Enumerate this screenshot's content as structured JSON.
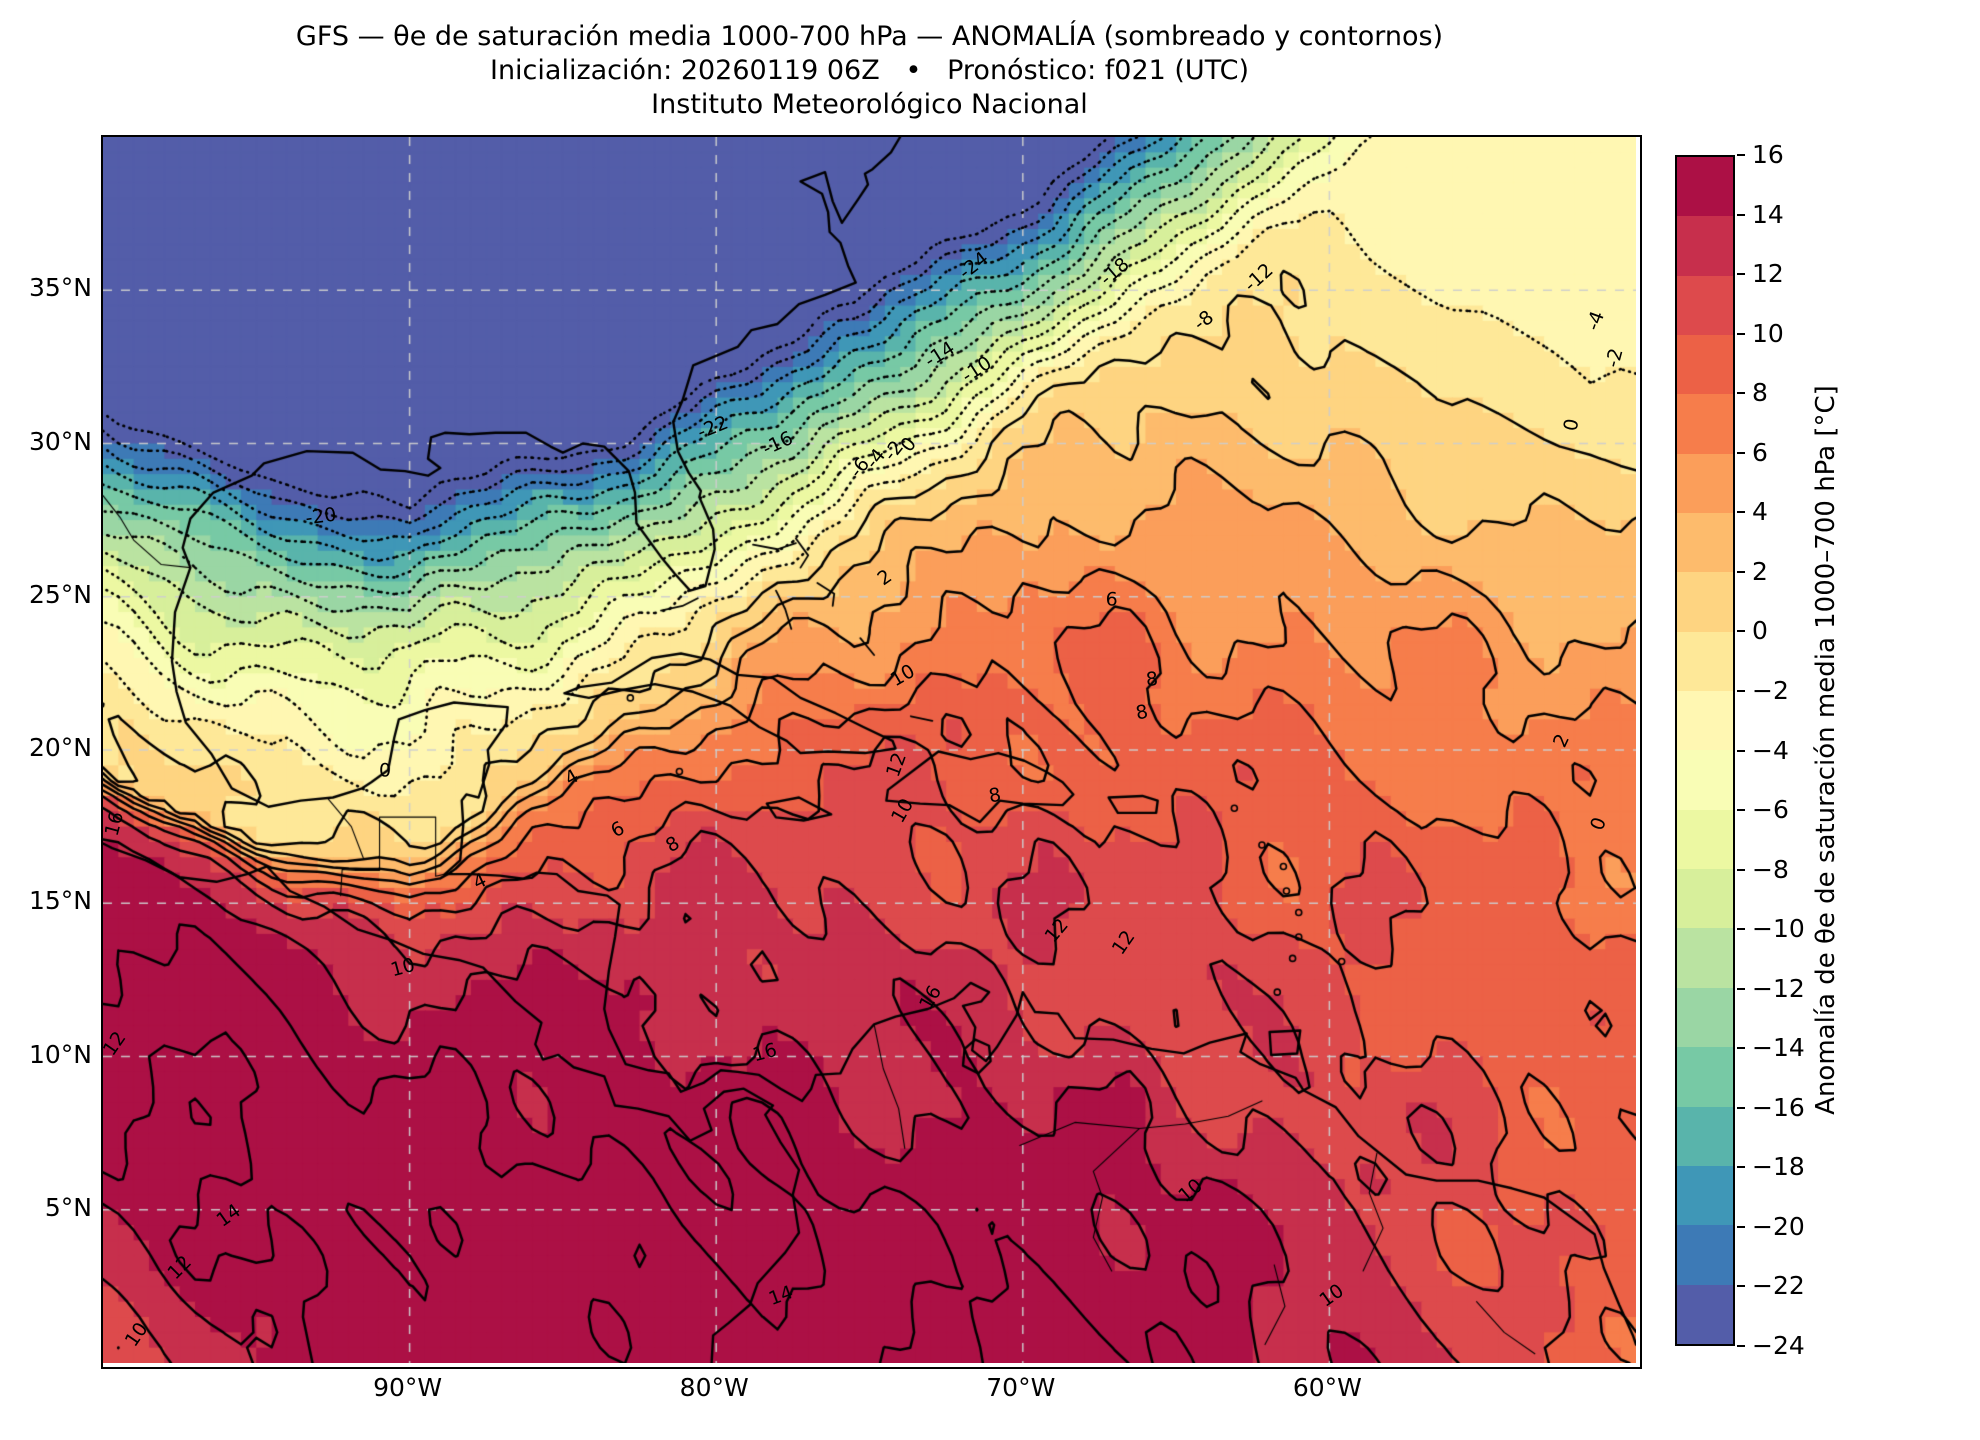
{
  "header": {
    "line1": "GFS — θe de saturación media 1000-700 hPa — ANOMALÍA (sombreado y contornos)",
    "line2": "Inicialización: 20260119 06Z   •   Pronóstico: f021 (UTC)",
    "line3": "Instituto Meteorológico Nacional"
  },
  "axes": {
    "lat_ticks": [
      {
        "label": "35°N",
        "lat": 35
      },
      {
        "label": "30°N",
        "lat": 30
      },
      {
        "label": "25°N",
        "lat": 25
      },
      {
        "label": "20°N",
        "lat": 20
      },
      {
        "label": "15°N",
        "lat": 15
      },
      {
        "label": "10°N",
        "lat": 10
      },
      {
        "label": "5°N",
        "lat": 5
      }
    ],
    "lon_ticks": [
      {
        "label": "90°W",
        "lon": -90
      },
      {
        "label": "80°W",
        "lon": -80
      },
      {
        "label": "70°W",
        "lon": -70
      },
      {
        "label": "60°W",
        "lon": -60
      }
    ]
  },
  "colorbar": {
    "label": "Anomalía de θe de saturación media 1000–700 hPa [°C]",
    "tick_labels": [
      "16",
      "14",
      "12",
      "10",
      "8",
      "6",
      "4",
      "2",
      "0",
      "−2",
      "−4",
      "−6",
      "−8",
      "−10",
      "−12",
      "−14",
      "−16",
      "−18",
      "−20",
      "−22",
      "−24"
    ],
    "bin_colors_low_to_high": [
      "#535DA9",
      "#3D7AB6",
      "#3F97B7",
      "#59B4AB",
      "#77C9A5",
      "#9AD6A4",
      "#BAE3A1",
      "#D7EF9B",
      "#ECF8A2",
      "#F9FDB5",
      "#FFF7B2",
      "#FEE898",
      "#FED481",
      "#FDBB6C",
      "#FB9E5A",
      "#F67D4B",
      "#EC6146",
      "#DD4A4C",
      "#C72F4C",
      "#AC1045"
    ]
  },
  "chart_data": {
    "type": "filled_contour_map",
    "title": "GFS — θe de saturación media 1000-700 hPa — ANOMALÍA (sombreado y contornos)",
    "subtitle": "Inicialización: 20260119 06Z • Pronóstico: f021 (UTC)",
    "source": "Instituto Meteorológico Nacional",
    "variable": "Anomalía de θe de saturación media 1000–700 hPa",
    "units": "°C",
    "extent": {
      "lon_min": -100,
      "lon_max": -50,
      "lat_min": 0,
      "lat_max": 40
    },
    "levels_c": [
      -24,
      -22,
      -20,
      -18,
      -16,
      -14,
      -12,
      -10,
      -8,
      -6,
      -4,
      -2,
      0,
      2,
      4,
      6,
      8,
      10,
      12,
      14,
      16
    ],
    "value_range_shaded": [
      -24,
      16
    ],
    "contour_interval": 2,
    "line_style": {
      "negative": "dotted",
      "zero_and_positive": "solid"
    },
    "gridline_lats": [
      5,
      10,
      15,
      20,
      25,
      30,
      35
    ],
    "gridline_lons": [
      -90,
      -80,
      -70,
      -60
    ],
    "pattern": "Very negative anomaly (≤ −24 °C, purple) over NW Gulf of Mexico and US East Coast; tight SW–NE gradient band toward mild negatives (−2 to −8) in NE corner; near-zero wedge over Mexico/Yucatán; strong positive anomaly (+8 to > +16 °C, crimson) over Central America, southern Caribbean and northern South America; orange (+2 to +8) over central Atlantic/Caribbean.",
    "contour_labels": [
      {
        "text": "-24",
        "lon": -71.6,
        "lat": 35.8,
        "rot": -38
      },
      {
        "text": "-18",
        "lon": -67.0,
        "lat": 35.6,
        "rot": -40
      },
      {
        "text": "-12",
        "lon": -62.3,
        "lat": 35.4,
        "rot": -42
      },
      {
        "text": "-8",
        "lon": -64.1,
        "lat": 34.0,
        "rot": -38
      },
      {
        "text": "-14",
        "lon": -72.7,
        "lat": 32.9,
        "rot": -32
      },
      {
        "text": "-10",
        "lon": -71.5,
        "lat": 32.4,
        "rot": -33
      },
      {
        "text": "-22",
        "lon": -80.1,
        "lat": 30.5,
        "rot": -22
      },
      {
        "text": "-16",
        "lon": -78.0,
        "lat": 30.0,
        "rot": -25
      },
      {
        "text": "-20",
        "lon": -92.9,
        "lat": 27.6,
        "rot": -8
      },
      {
        "text": "-6",
        "lon": -75.3,
        "lat": 29.2,
        "rot": -52
      },
      {
        "text": "-4",
        "lon": -74.8,
        "lat": 29.5,
        "rot": -52
      },
      {
        "text": "-2",
        "lon": -74.2,
        "lat": 29.75,
        "rot": -52
      },
      {
        "text": "0",
        "lon": -73.7,
        "lat": 29.95,
        "rot": -52
      },
      {
        "text": "-4",
        "lon": -51.3,
        "lat": 34.0,
        "rot": -70
      },
      {
        "text": "0",
        "lon": -52.1,
        "lat": 30.6,
        "rot": -80
      },
      {
        "text": "-2",
        "lon": -50.7,
        "lat": 32.8,
        "rot": -75
      },
      {
        "text": "2",
        "lon": -74.5,
        "lat": 25.6,
        "rot": -35
      },
      {
        "text": "2",
        "lon": -52.4,
        "lat": 20.3,
        "rot": -65
      },
      {
        "text": "0",
        "lon": -51.2,
        "lat": 17.6,
        "rot": -70
      },
      {
        "text": "0",
        "lon": -90.8,
        "lat": 19.3,
        "rot": 0
      },
      {
        "text": "4",
        "lon": -84.7,
        "lat": 19.1,
        "rot": -30
      },
      {
        "text": "4",
        "lon": -87.7,
        "lat": 15.7,
        "rot": -25
      },
      {
        "text": "6",
        "lon": -83.2,
        "lat": 17.4,
        "rot": -28
      },
      {
        "text": "8",
        "lon": -81.4,
        "lat": 16.9,
        "rot": -30
      },
      {
        "text": "10",
        "lon": -90.2,
        "lat": 12.9,
        "rot": -15
      },
      {
        "text": "6",
        "lon": -67.1,
        "lat": 24.9,
        "rot": 0
      },
      {
        "text": "8",
        "lon": -65.8,
        "lat": 22.3,
        "rot": -5
      },
      {
        "text": "8",
        "lon": -66.1,
        "lat": 21.2,
        "rot": -10
      },
      {
        "text": "10",
        "lon": -73.9,
        "lat": 22.4,
        "rot": -30
      },
      {
        "text": "12",
        "lon": -74.1,
        "lat": 19.5,
        "rot": -70
      },
      {
        "text": "10",
        "lon": -73.9,
        "lat": 18.0,
        "rot": -60
      },
      {
        "text": "8",
        "lon": -70.9,
        "lat": 18.5,
        "rot": -10
      },
      {
        "text": "12",
        "lon": -68.9,
        "lat": 14.1,
        "rot": -50
      },
      {
        "text": "12",
        "lon": -66.7,
        "lat": 13.7,
        "rot": -55
      },
      {
        "text": "16",
        "lon": -99.6,
        "lat": 17.6,
        "rot": -75
      },
      {
        "text": "16",
        "lon": -78.4,
        "lat": 10.1,
        "rot": -15
      },
      {
        "text": "16",
        "lon": -73.0,
        "lat": 11.9,
        "rot": -60
      },
      {
        "text": "12",
        "lon": -99.6,
        "lat": 10.4,
        "rot": -55
      },
      {
        "text": "14",
        "lon": -95.9,
        "lat": 4.8,
        "rot": -35
      },
      {
        "text": "12",
        "lon": -97.5,
        "lat": 3.1,
        "rot": -45
      },
      {
        "text": "10",
        "lon": -98.9,
        "lat": 0.9,
        "rot": -55
      },
      {
        "text": "14",
        "lon": -77.9,
        "lat": 2.2,
        "rot": -20
      },
      {
        "text": "10",
        "lon": -64.5,
        "lat": 5.6,
        "rot": -40
      },
      {
        "text": "10",
        "lon": -59.9,
        "lat": 2.2,
        "rot": -35
      }
    ]
  }
}
